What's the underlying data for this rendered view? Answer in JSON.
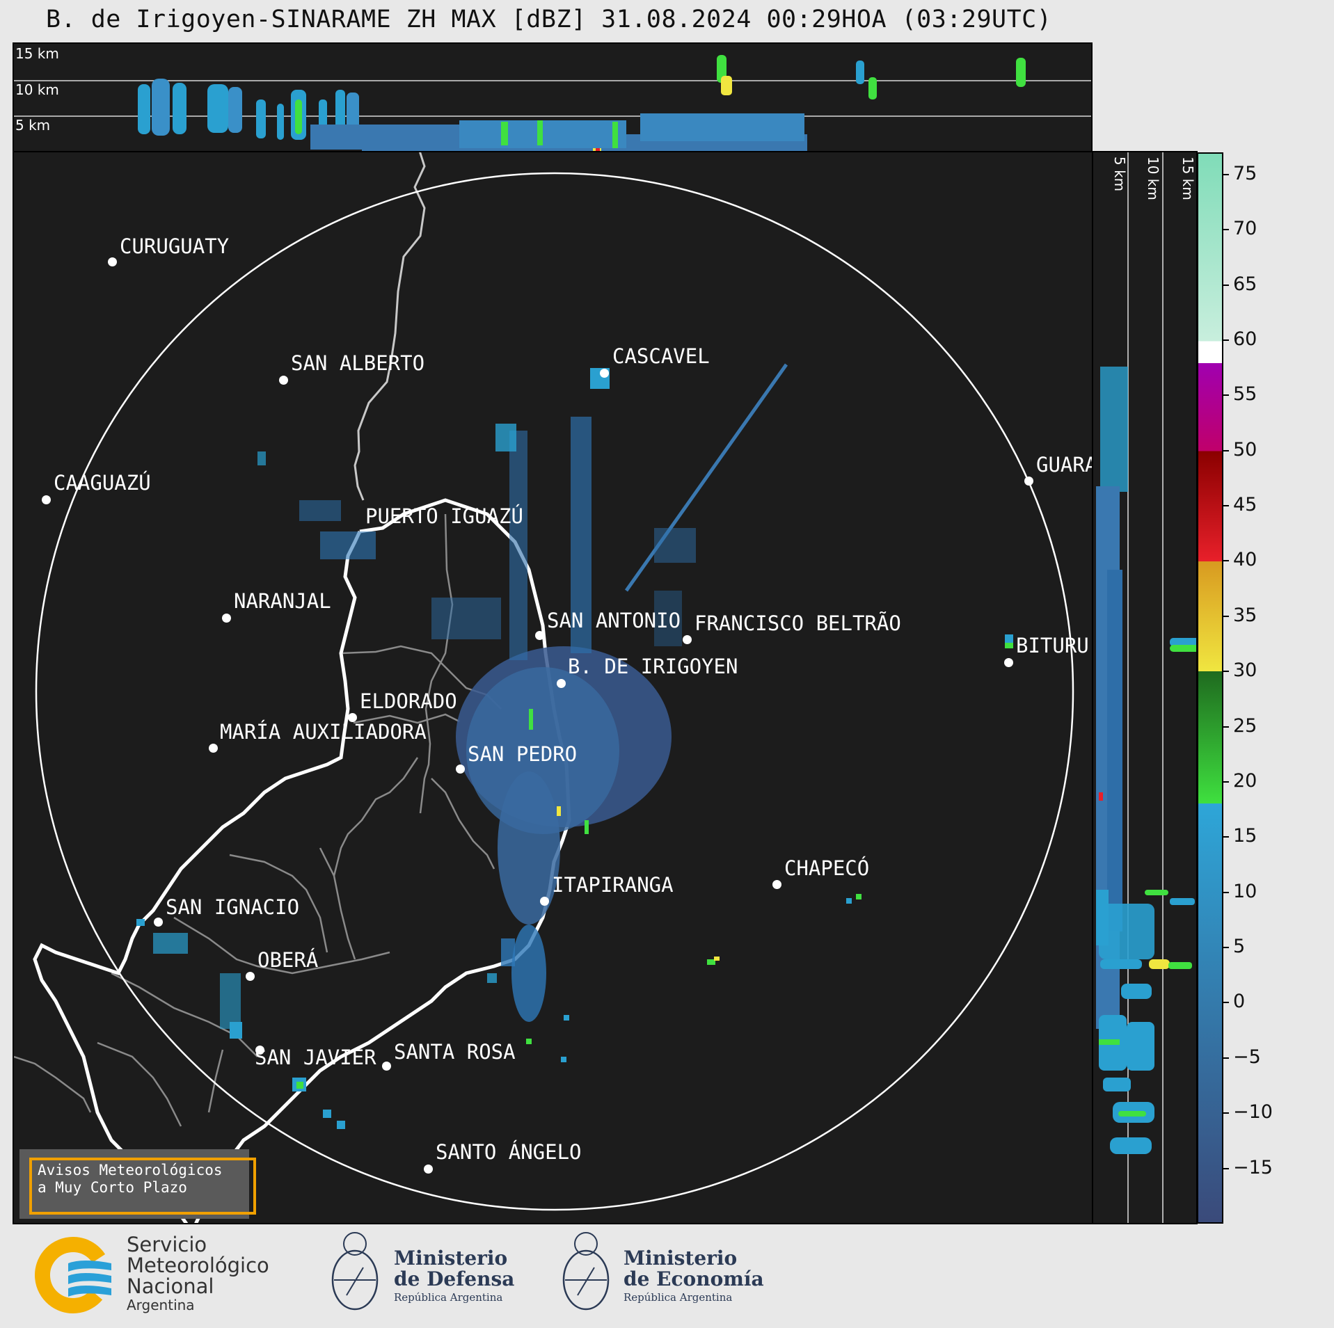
{
  "title": "B. de Irigoyen-SINARAME ZH MAX [dBZ] 31.08.2024 00:29HOA (03:29UTC)",
  "top_panel": {
    "labels": [
      "15 km",
      "10 km",
      "5 km"
    ]
  },
  "side_panel": {
    "labels": [
      "5 km",
      "10 km",
      "15 km"
    ]
  },
  "cities": [
    {
      "name": "CURUGUATY"
    },
    {
      "name": "SAN ALBERTO"
    },
    {
      "name": "CASCAVEL"
    },
    {
      "name": "CAAGUAZÚ"
    },
    {
      "name": "GUARA"
    },
    {
      "name": "PUERTO IGUAZÚ"
    },
    {
      "name": "NARANJAL"
    },
    {
      "name": "SAN ANTONIO"
    },
    {
      "name": "FRANCISCO BELTRÃO"
    },
    {
      "name": "BITURU"
    },
    {
      "name": "B. DE IRIGOYEN"
    },
    {
      "name": "ELDORADO"
    },
    {
      "name": "MARÍA AUXILIADORA"
    },
    {
      "name": "SAN PEDRO"
    },
    {
      "name": "CHAPECÓ"
    },
    {
      "name": "ITAPIRANGA"
    },
    {
      "name": "SAN IGNACIO"
    },
    {
      "name": "OBERÁ"
    },
    {
      "name": "SAN JAVIER"
    },
    {
      "name": "SANTA ROSA"
    },
    {
      "name": "SANTO ÁNGELO"
    }
  ],
  "colorbar": {
    "unit": "dBZ",
    "ticks": [
      "75",
      "70",
      "65",
      "60",
      "55",
      "50",
      "45",
      "40",
      "35",
      "30",
      "25",
      "20",
      "15",
      "10",
      "5",
      "0",
      "−5",
      "−10",
      "−15"
    ],
    "range": [
      -20,
      77
    ],
    "bands": [
      {
        "from": -20,
        "to": 18,
        "color": "#3a4a7a",
        "color_top": "#2ea6d8"
      },
      {
        "from": 18,
        "to": 30,
        "color": "#3fe03f",
        "color_top": "#1f6a1f"
      },
      {
        "from": 30,
        "to": 40,
        "color": "#f0e640",
        "color_top": "#d89a20"
      },
      {
        "from": 40,
        "to": 50,
        "color": "#e8202a",
        "color_top": "#8a0000"
      },
      {
        "from": 50,
        "to": 58,
        "color": "#c0006a",
        "color_top": "#a000b0"
      },
      {
        "from": 58,
        "to": 60,
        "color": "#ffffff",
        "color_top": "#ffffff"
      },
      {
        "from": 60,
        "to": 77,
        "color": "#c8eedd",
        "color_top": "#80dcb8"
      }
    ]
  },
  "colors": {
    "background": "#1c1c1c",
    "echo_weak": "#3a6aa0",
    "echo_light": "#2aa0d0",
    "echo_green": "#40e040",
    "echo_yellow": "#f0e640",
    "accent": "#f0a000"
  },
  "avisos": {
    "line1": "Avisos Meteorológicos",
    "line2": "a Muy Corto Plazo"
  },
  "logos": {
    "smn": [
      "Servicio",
      "Meteorológico",
      "Nacional",
      "Argentina"
    ],
    "defensa": [
      "Ministerio",
      "de Defensa",
      "República Argentina"
    ],
    "economia": [
      "Ministerio",
      "de Economía",
      "República Argentina"
    ]
  }
}
